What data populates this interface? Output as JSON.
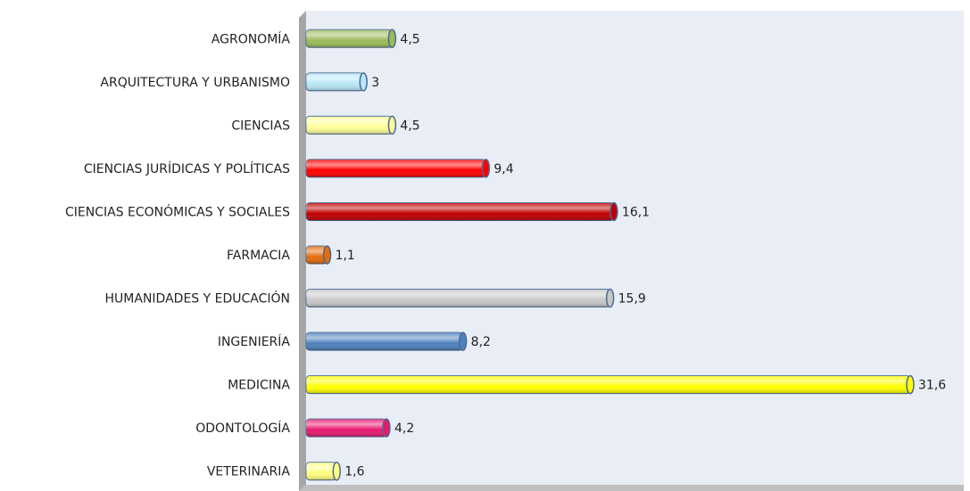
{
  "chart_data": {
    "type": "bar",
    "orientation": "horizontal",
    "categories": [
      "AGRONOMÍA",
      "ARQUITECTURA Y URBANISMO",
      "CIENCIAS",
      "CIENCIAS JURÍDICAS Y POLÍTICAS",
      "CIENCIAS ECONÓMICAS Y SOCIALES",
      "FARMACIA",
      "HUMANIDADES Y EDUCACIÓN",
      "INGENIERÍA",
      "MEDICINA",
      "ODONTOLOGÍA",
      "VETERINARIA"
    ],
    "values": [
      4.5,
      3,
      4.5,
      9.4,
      16.1,
      1.1,
      15.9,
      8.2,
      31.6,
      4.2,
      1.6
    ],
    "value_labels": [
      "4,5",
      "3",
      "4,5",
      "9,4",
      "16,1",
      "1,1",
      "15,9",
      "8,2",
      "31,6",
      "4,2",
      "1,6"
    ],
    "colors": [
      "#9bbb59",
      "#b7e6f5",
      "#ffff99",
      "#ff0000",
      "#c00000",
      "#e46c0a",
      "#c8c8c8",
      "#4f81bd",
      "#ffff00",
      "#e8196e",
      "#ffff80"
    ],
    "xlim": [
      0,
      34.4
    ],
    "grid": false
  }
}
